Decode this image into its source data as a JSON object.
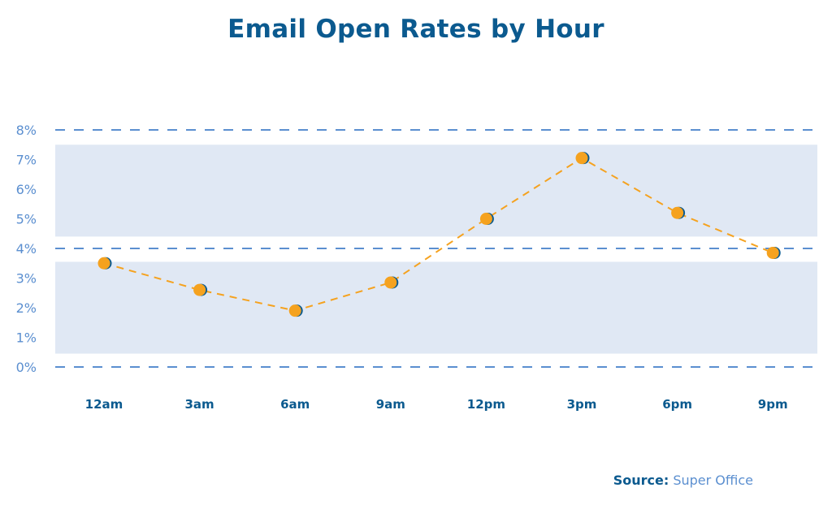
{
  "chart_data": {
    "type": "line",
    "title": "Email Open Rates by Hour",
    "categories": [
      "12am",
      "3am",
      "6am",
      "9am",
      "12pm",
      "3pm",
      "6pm",
      "9pm"
    ],
    "values": [
      3.5,
      2.6,
      1.9,
      2.85,
      5.0,
      7.05,
      5.2,
      3.85
    ],
    "ylim": [
      0,
      8
    ],
    "y_ticks": [
      "0%",
      "1%",
      "2%",
      "3%",
      "4%",
      "5%",
      "6%",
      "7%",
      "8%"
    ],
    "grid": "dashed lines at 0%, 4%, 8%; shaded bands",
    "legend": "none",
    "line_style": "dashed",
    "colors": {
      "line": "#f5a21f",
      "marker": "#f5a21f",
      "marker_shadow": "#0b5a8f",
      "band": "#e0e8f4",
      "gridline": "#5b8fd0",
      "tick_label": "#5b8fd0",
      "category_label": "#0b5a8f",
      "title": "#0b5a8f"
    }
  },
  "source": {
    "label": "Source:",
    "value": "Super Office"
  }
}
